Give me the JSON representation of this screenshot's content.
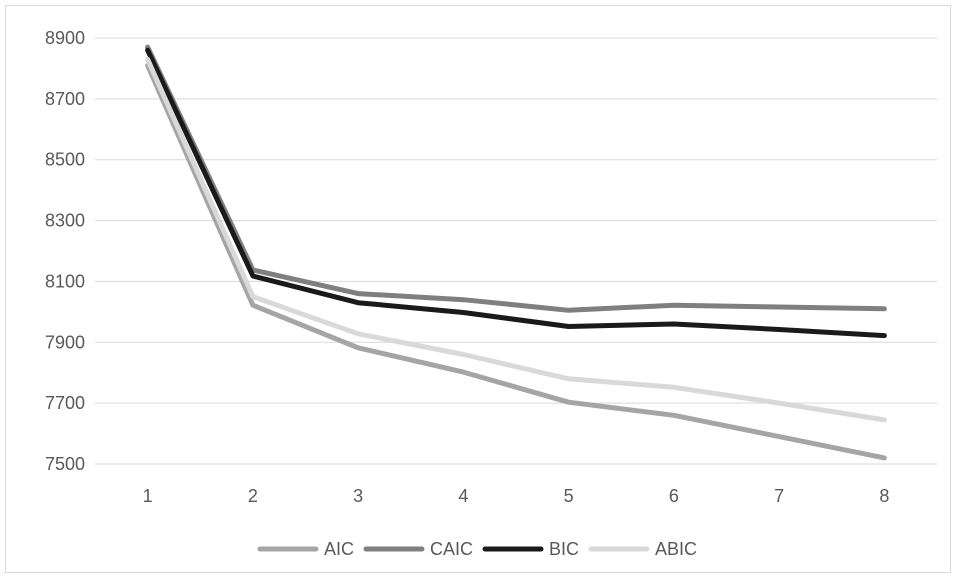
{
  "chart_data": {
    "type": "line",
    "title": "",
    "xlabel": "",
    "ylabel": "",
    "categories": [
      "1",
      "2",
      "3",
      "4",
      "5",
      "6",
      "7",
      "8"
    ],
    "ylim": [
      7500,
      8900
    ],
    "yticks": [
      "8900",
      "8700",
      "8500",
      "8300",
      "8100",
      "7900",
      "7700",
      "7500"
    ],
    "grid": true,
    "legend_position": "bottom",
    "series": [
      {
        "name": "AIC",
        "color": "#a5a5a5",
        "values": [
          8810,
          8022,
          7882,
          7802,
          7703,
          7660,
          7590,
          7520
        ]
      },
      {
        "name": "CAIC",
        "color": "#7f7f7f",
        "values": [
          8870,
          8138,
          8060,
          8040,
          8005,
          8022,
          8016,
          8010
        ]
      },
      {
        "name": "BIC",
        "color": "#1a1a1a",
        "values": [
          8860,
          8118,
          8030,
          7998,
          7952,
          7960,
          7942,
          7922
        ]
      },
      {
        "name": "ABIC",
        "color": "#d9d9d9",
        "values": [
          8830,
          8050,
          7928,
          7860,
          7780,
          7752,
          7700,
          7645
        ]
      }
    ]
  }
}
